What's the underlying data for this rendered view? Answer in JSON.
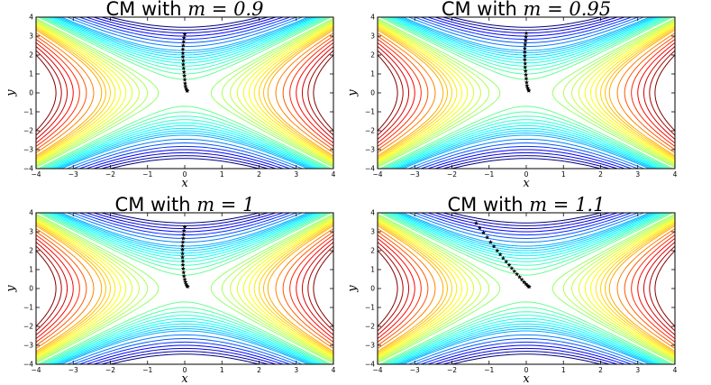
{
  "chart_data": [
    {
      "type": "contour",
      "title": "CM with ",
      "title_math": "m = 0.9",
      "xlabel": "x",
      "ylabel": "y",
      "xlim": [
        -4,
        4
      ],
      "ylim": [
        -4,
        4
      ],
      "xticks": [
        -4,
        -3,
        -2,
        -1,
        0,
        1,
        2,
        3,
        4
      ],
      "yticks": [
        -4,
        -3,
        -2,
        -1,
        0,
        1,
        2,
        3,
        4
      ],
      "trajectory": [
        [
          0.0,
          3.1
        ],
        [
          -0.02,
          2.9
        ],
        [
          -0.03,
          2.7
        ],
        [
          -0.04,
          2.5
        ],
        [
          -0.05,
          2.3
        ],
        [
          -0.05,
          2.1
        ],
        [
          -0.05,
          1.9
        ],
        [
          -0.04,
          1.7
        ],
        [
          -0.04,
          1.5
        ],
        [
          -0.03,
          1.3
        ],
        [
          -0.02,
          1.1
        ],
        [
          -0.01,
          0.9
        ],
        [
          0.0,
          0.7
        ],
        [
          0.01,
          0.5
        ],
        [
          0.02,
          0.35
        ],
        [
          0.04,
          0.22
        ],
        [
          0.06,
          0.14
        ],
        [
          0.07,
          0.1
        ]
      ]
    },
    {
      "type": "contour",
      "title": "CM with ",
      "title_math": "m = 0.95",
      "xlabel": "x",
      "ylabel": "y",
      "xlim": [
        -4,
        4
      ],
      "ylim": [
        -4,
        4
      ],
      "xticks": [
        -4,
        -3,
        -2,
        -1,
        0,
        1,
        2,
        3,
        4
      ],
      "yticks": [
        -4,
        -3,
        -2,
        -1,
        0,
        1,
        2,
        3,
        4
      ],
      "trajectory": [
        [
          0.0,
          3.15
        ],
        [
          -0.01,
          2.95
        ],
        [
          -0.02,
          2.75
        ],
        [
          -0.03,
          2.55
        ],
        [
          -0.04,
          2.35
        ],
        [
          -0.04,
          2.15
        ],
        [
          -0.04,
          1.95
        ],
        [
          -0.04,
          1.75
        ],
        [
          -0.03,
          1.55
        ],
        [
          -0.03,
          1.35
        ],
        [
          -0.02,
          1.15
        ],
        [
          -0.01,
          0.95
        ],
        [
          0.0,
          0.75
        ],
        [
          0.01,
          0.55
        ],
        [
          0.02,
          0.38
        ],
        [
          0.04,
          0.25
        ],
        [
          0.06,
          0.16
        ],
        [
          0.07,
          0.11
        ]
      ]
    },
    {
      "type": "contour",
      "title": "CM with ",
      "title_math": "m = 1",
      "xlabel": "x",
      "ylabel": "y",
      "xlim": [
        -4,
        4
      ],
      "ylim": [
        -4,
        4
      ],
      "xticks": [
        -4,
        -3,
        -2,
        -1,
        0,
        1,
        2,
        3,
        4
      ],
      "yticks": [
        -4,
        -3,
        -2,
        -1,
        0,
        1,
        2,
        3,
        4
      ],
      "trajectory": [
        [
          0.0,
          3.25
        ],
        [
          -0.02,
          3.05
        ],
        [
          -0.03,
          2.85
        ],
        [
          -0.04,
          2.65
        ],
        [
          -0.05,
          2.45
        ],
        [
          -0.06,
          2.25
        ],
        [
          -0.06,
          2.05
        ],
        [
          -0.06,
          1.85
        ],
        [
          -0.06,
          1.65
        ],
        [
          -0.05,
          1.45
        ],
        [
          -0.05,
          1.25
        ],
        [
          -0.04,
          1.05
        ],
        [
          -0.03,
          0.85
        ],
        [
          -0.02,
          0.65
        ],
        [
          0.0,
          0.48
        ],
        [
          0.02,
          0.34
        ],
        [
          0.04,
          0.22
        ],
        [
          0.06,
          0.14
        ],
        [
          0.08,
          0.1
        ]
      ]
    },
    {
      "type": "contour",
      "title": "CM with ",
      "title_math": "m = 1.1",
      "xlabel": "x",
      "ylabel": "y",
      "xlim": [
        -4,
        4
      ],
      "ylim": [
        -4,
        4
      ],
      "xticks": [
        -4,
        -3,
        -2,
        -1,
        0,
        1,
        2,
        3,
        4
      ],
      "yticks": [
        -4,
        -3,
        -2,
        -1,
        0,
        1,
        2,
        3,
        4
      ],
      "trajectory": [
        [
          -1.35,
          3.45
        ],
        [
          -1.25,
          3.2
        ],
        [
          -1.15,
          2.95
        ],
        [
          -1.05,
          2.7
        ],
        [
          -0.96,
          2.45
        ],
        [
          -0.87,
          2.22
        ],
        [
          -0.78,
          2.0
        ],
        [
          -0.7,
          1.8
        ],
        [
          -0.62,
          1.6
        ],
        [
          -0.54,
          1.42
        ],
        [
          -0.46,
          1.24
        ],
        [
          -0.39,
          1.07
        ],
        [
          -0.32,
          0.91
        ],
        [
          -0.25,
          0.76
        ],
        [
          -0.18,
          0.61
        ],
        [
          -0.12,
          0.47
        ],
        [
          -0.06,
          0.34
        ],
        [
          -0.01,
          0.24
        ],
        [
          0.03,
          0.16
        ],
        [
          0.06,
          0.11
        ],
        [
          0.08,
          0.09
        ]
      ]
    }
  ],
  "contour_levels": [
    -12,
    -11,
    -10,
    -9,
    -8,
    -7,
    -6,
    -5,
    -4.5,
    -4,
    -3.5,
    -3,
    -2.5,
    -2,
    -1.5,
    -1,
    -0.5,
    0.5,
    1,
    1.5,
    2,
    2.5,
    3,
    3.5,
    4,
    4.5,
    5,
    6,
    7,
    8,
    9,
    10,
    11,
    12
  ]
}
